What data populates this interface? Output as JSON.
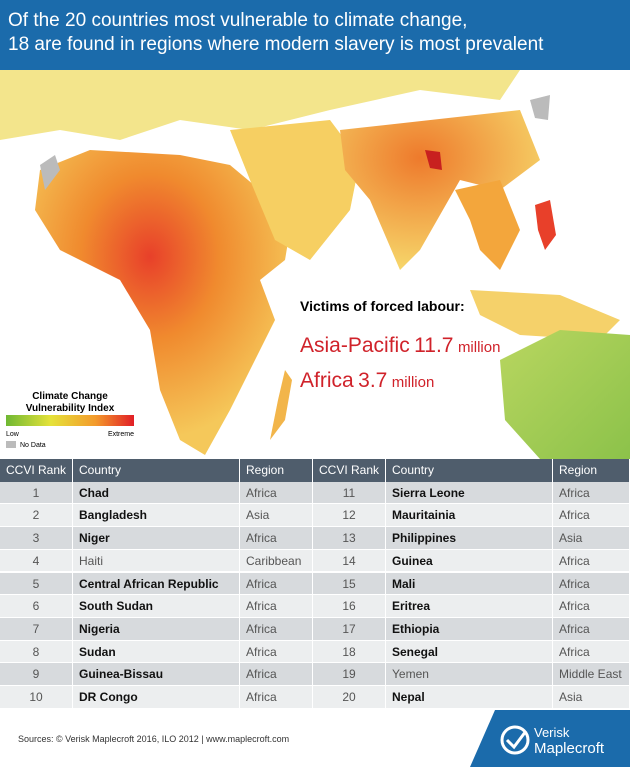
{
  "header": {
    "title_lines": [
      "Of the 20 countries most vulnerable to climate change,",
      "18 are found in regions where modern slavery is most prevalent"
    ]
  },
  "map": {
    "callout": {
      "heading": "Victims of forced labour:",
      "items": [
        {
          "region": "Asia-Pacific",
          "value": "11.7",
          "unit": "million"
        },
        {
          "region": "Africa",
          "value": "3.7",
          "unit": "million"
        }
      ]
    },
    "legend": {
      "title_lines": [
        "Climate Change",
        "Vulnerability Index"
      ],
      "low": "Low",
      "high": "Extreme",
      "no_data": "No Data"
    }
  },
  "table": {
    "columns": [
      "CCVI Rank",
      "Country",
      "Region"
    ],
    "rows": [
      {
        "rank": 1,
        "country": "Chad",
        "region": "Africa",
        "bold": true
      },
      {
        "rank": 2,
        "country": "Bangladesh",
        "region": "Asia",
        "bold": true
      },
      {
        "rank": 3,
        "country": "Niger",
        "region": "Africa",
        "bold": true
      },
      {
        "rank": 4,
        "country": "Haiti",
        "region": "Caribbean",
        "bold": false
      },
      {
        "rank": 5,
        "country": "Central African Republic",
        "region": "Africa",
        "bold": true
      },
      {
        "rank": 6,
        "country": "South Sudan",
        "region": "Africa",
        "bold": true
      },
      {
        "rank": 7,
        "country": "Nigeria",
        "region": "Africa",
        "bold": true
      },
      {
        "rank": 8,
        "country": "Sudan",
        "region": "Africa",
        "bold": true
      },
      {
        "rank": 9,
        "country": "Guinea-Bissau",
        "region": "Africa",
        "bold": true
      },
      {
        "rank": 10,
        "country": "DR Congo",
        "region": "Africa",
        "bold": true
      },
      {
        "rank": 11,
        "country": "Sierra Leone",
        "region": "Africa",
        "bold": true
      },
      {
        "rank": 12,
        "country": "Mauritainia",
        "region": "Africa",
        "bold": true
      },
      {
        "rank": 13,
        "country": "Philippines",
        "region": "Asia",
        "bold": true
      },
      {
        "rank": 14,
        "country": "Guinea",
        "region": "Africa",
        "bold": true
      },
      {
        "rank": 15,
        "country": "Mali",
        "region": "Africa",
        "bold": true
      },
      {
        "rank": 16,
        "country": "Eritrea",
        "region": "Africa",
        "bold": true
      },
      {
        "rank": 17,
        "country": "Ethiopia",
        "region": "Africa",
        "bold": true
      },
      {
        "rank": 18,
        "country": "Senegal",
        "region": "Africa",
        "bold": true
      },
      {
        "rank": 19,
        "country": "Yemen",
        "region": "Middle East",
        "bold": false
      },
      {
        "rank": 20,
        "country": "Nepal",
        "region": "Asia",
        "bold": true
      }
    ]
  },
  "footer": {
    "sources": "Sources: © Verisk Maplecroft 2016, ILO 2012  |  www.maplecroft.com",
    "logo_lines": [
      "Verisk",
      "Maplecroft"
    ]
  }
}
